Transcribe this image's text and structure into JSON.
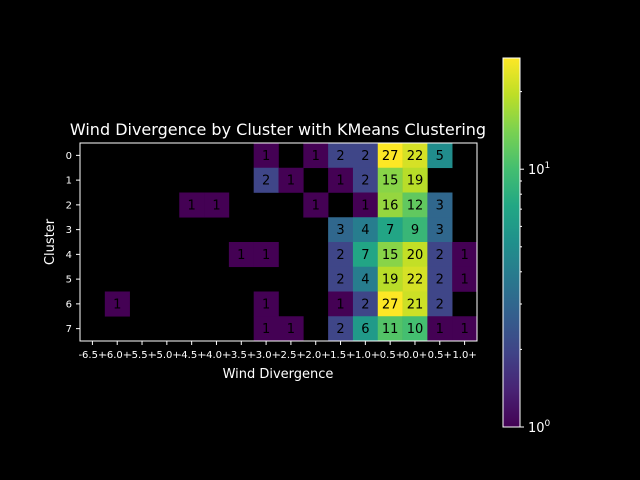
{
  "chart_data": {
    "type": "heatmap",
    "title": "Wind Divergence by Cluster with KMeans Clustering",
    "xlabel": "Wind Divergence",
    "ylabel": "Cluster",
    "x_categories": [
      "-6.5+",
      "-6.0+",
      "-5.5+",
      "-5.0+",
      "-4.5+",
      "-4.0+",
      "-3.5+",
      "-3.0+",
      "-2.5+",
      "-2.0+",
      "-1.5+",
      "-1.0+",
      "-0.5+",
      "0.0+",
      "0.5+",
      "1.0+"
    ],
    "y_categories": [
      "0",
      "1",
      "2",
      "3",
      "4",
      "5",
      "6",
      "7"
    ],
    "values": [
      [
        null,
        null,
        null,
        null,
        null,
        null,
        null,
        1,
        null,
        1,
        2,
        2,
        27,
        22,
        5,
        null
      ],
      [
        null,
        null,
        null,
        null,
        null,
        null,
        null,
        2,
        1,
        null,
        1,
        2,
        15,
        19,
        null,
        null
      ],
      [
        null,
        null,
        null,
        null,
        1,
        1,
        null,
        null,
        null,
        1,
        null,
        1,
        16,
        12,
        3,
        null
      ],
      [
        null,
        null,
        null,
        null,
        null,
        null,
        null,
        null,
        null,
        null,
        3,
        4,
        7,
        9,
        3,
        null
      ],
      [
        null,
        null,
        null,
        null,
        null,
        null,
        1,
        1,
        null,
        null,
        2,
        7,
        15,
        20,
        2,
        1
      ],
      [
        null,
        null,
        null,
        null,
        null,
        null,
        null,
        null,
        null,
        null,
        2,
        4,
        19,
        22,
        2,
        1
      ],
      [
        null,
        1,
        null,
        null,
        null,
        null,
        null,
        1,
        null,
        null,
        1,
        2,
        27,
        21,
        2,
        null
      ],
      [
        null,
        null,
        null,
        null,
        null,
        null,
        null,
        1,
        1,
        null,
        2,
        6,
        11,
        10,
        1,
        1
      ]
    ],
    "colorbar": {
      "scale": "log",
      "range": [
        1,
        27
      ],
      "colormap": "viridis",
      "ticks": [
        {
          "base": "10",
          "exp": "0",
          "value": 1
        },
        {
          "base": "10",
          "exp": "1",
          "value": 10
        }
      ]
    },
    "colors": {
      "background": "#000000",
      "foreground": "#ffffff",
      "cell_text": "#000000"
    }
  }
}
